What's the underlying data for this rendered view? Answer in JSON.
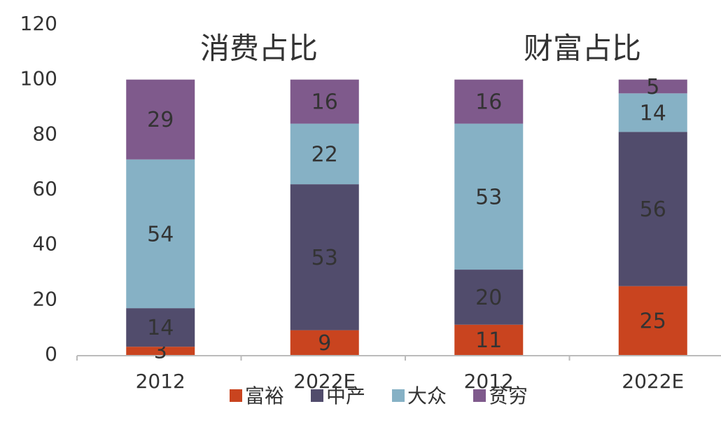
{
  "chart_data": {
    "type": "stacked_bar",
    "annotations": [
      "消费占比",
      "财富占比"
    ],
    "categories": [
      "2012",
      "2022E",
      "2012",
      "2022E"
    ],
    "series": [
      {
        "name": "富裕",
        "color": "#c9441f",
        "values": [
          3,
          9,
          11,
          25
        ]
      },
      {
        "name": "中产",
        "color": "#514c6c",
        "values": [
          14,
          53,
          20,
          56
        ]
      },
      {
        "name": "大众",
        "color": "#86b1c5",
        "values": [
          54,
          22,
          53,
          14
        ]
      },
      {
        "name": "贫穷",
        "color": "#7f5a8c",
        "values": [
          29,
          16,
          16,
          5
        ]
      }
    ],
    "ylim": [
      0,
      120
    ],
    "yticks": [
      0,
      20,
      40,
      60,
      80,
      100,
      120
    ],
    "grid": false,
    "legend": "bottom"
  }
}
